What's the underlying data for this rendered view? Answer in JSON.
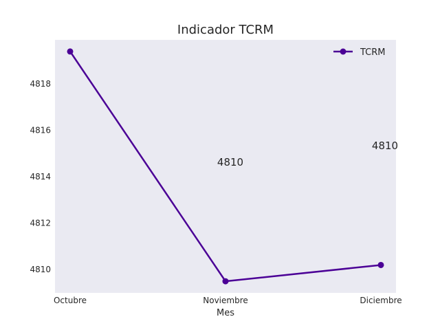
{
  "chart_data": {
    "type": "line",
    "title": "Indicador TCRM",
    "xlabel": "Mes",
    "ylabel": "",
    "categories": [
      "Octubre",
      "Noviembre",
      "Diciembre"
    ],
    "series": [
      {
        "name": "TCRM",
        "values": [
          4819.4,
          4809.5,
          4810.2
        ],
        "color": "#4b0096"
      }
    ],
    "ylim": [
      4809.0,
      4819.9
    ],
    "yticks": [
      4810,
      4812,
      4814,
      4816,
      4818
    ],
    "annotations": [
      "4810",
      "4810"
    ],
    "grid": false,
    "legend_position": "top-right",
    "plot_background": "#eaeaf2"
  }
}
